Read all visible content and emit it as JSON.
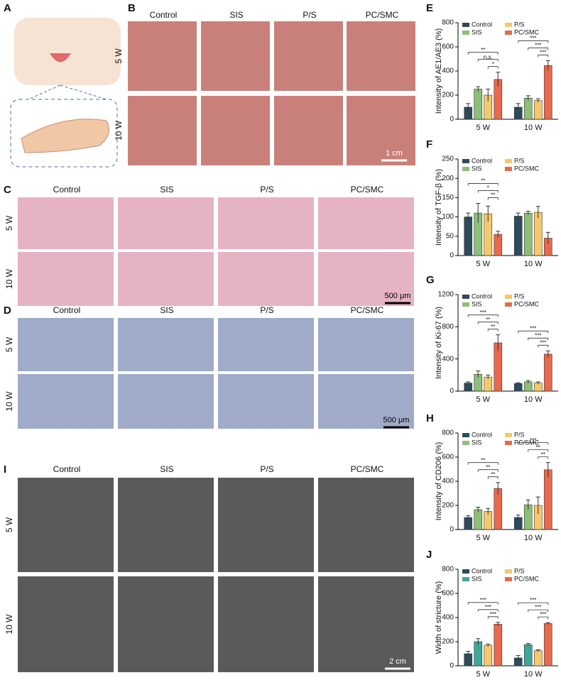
{
  "panel_labels": [
    "A",
    "B",
    "C",
    "D",
    "I"
  ],
  "groups": [
    "Control",
    "SIS",
    "P/S",
    "PC/SMC"
  ],
  "time_points": [
    "5 W",
    "10 W"
  ],
  "scale_bars": {
    "B": "1 cm",
    "C": "500 μm",
    "D": "500 μm",
    "I": "2 cm"
  },
  "chart_data": [
    {
      "type": "bar",
      "panel_label": "E",
      "y_label": "Intensity of AE1/AE3 (%)",
      "categories": [
        "5 W",
        "10 W"
      ],
      "ylim": [
        0,
        800
      ],
      "yticks": [
        0,
        200,
        400,
        600,
        800
      ],
      "series": [
        {
          "name": "Control",
          "color": "#2d4b5c",
          "values": [
            100,
            100
          ],
          "errors": [
            30,
            30
          ]
        },
        {
          "name": "SIS",
          "color": "#8dbf78",
          "values": [
            250,
            175
          ],
          "errors": [
            20,
            20
          ]
        },
        {
          "name": "P/S",
          "color": "#f3c969",
          "values": [
            200,
            155
          ],
          "errors": [
            50,
            15
          ]
        },
        {
          "name": "PC/SMC",
          "color": "#e66a4c",
          "values": [
            330,
            445
          ],
          "errors": [
            60,
            40
          ]
        }
      ],
      "annotations": [
        [
          "**",
          "n.s.",
          "*"
        ],
        [
          "***",
          "***",
          "***"
        ]
      ]
    },
    {
      "type": "bar",
      "panel_label": "F",
      "y_label": "Intensity of TGF-β (%)",
      "categories": [
        "5 W",
        "10 W"
      ],
      "ylim": [
        0,
        250
      ],
      "yticks": [
        0,
        50,
        100,
        150,
        200,
        250
      ],
      "series": [
        {
          "name": "Control",
          "color": "#2d4b5c",
          "values": [
            100,
            102
          ],
          "errors": [
            10,
            8
          ]
        },
        {
          "name": "SIS",
          "color": "#8dbf78",
          "values": [
            110,
            110
          ],
          "errors": [
            25,
            5
          ]
        },
        {
          "name": "P/S",
          "color": "#f3c969",
          "values": [
            108,
            112
          ],
          "errors": [
            20,
            15
          ]
        },
        {
          "name": "PC/SMC",
          "color": "#e66a4c",
          "values": [
            55,
            45
          ],
          "errors": [
            8,
            15
          ]
        }
      ],
      "annotations": [
        [
          "**",
          "*",
          "**"
        ],
        []
      ]
    },
    {
      "type": "bar",
      "panel_label": "G",
      "y_label": "Intensity of Ki-67 (%)",
      "categories": [
        "5 W",
        "10 W"
      ],
      "ylim": [
        0,
        1200
      ],
      "yticks": [
        0,
        400,
        800,
        1200
      ],
      "series": [
        {
          "name": "Control",
          "color": "#2d4b5c",
          "values": [
            100,
            95
          ],
          "errors": [
            15,
            10
          ]
        },
        {
          "name": "SIS",
          "color": "#8dbf78",
          "values": [
            210,
            115
          ],
          "errors": [
            40,
            15
          ]
        },
        {
          "name": "P/S",
          "color": "#f3c969",
          "values": [
            175,
            100
          ],
          "errors": [
            25,
            15
          ]
        },
        {
          "name": "PC/SMC",
          "color": "#e66a4c",
          "values": [
            600,
            460
          ],
          "errors": [
            100,
            40
          ]
        }
      ],
      "annotations": [
        [
          "***",
          "**",
          "**"
        ],
        [
          "***",
          "***",
          "***"
        ]
      ]
    },
    {
      "type": "bar",
      "panel_label": "H",
      "y_label": "Intensity of CD206 (%)",
      "categories": [
        "5 W",
        "10 W"
      ],
      "ylim": [
        0,
        800
      ],
      "yticks": [
        0,
        200,
        400,
        600,
        800
      ],
      "series": [
        {
          "name": "Control",
          "color": "#2d4b5c",
          "values": [
            100,
            100
          ],
          "errors": [
            15,
            20
          ]
        },
        {
          "name": "SIS",
          "color": "#8dbf78",
          "values": [
            165,
            205
          ],
          "errors": [
            20,
            40
          ]
        },
        {
          "name": "P/S",
          "color": "#f3c969",
          "values": [
            150,
            200
          ],
          "errors": [
            25,
            70
          ]
        },
        {
          "name": "PC/SMC",
          "color": "#e66a4c",
          "values": [
            340,
            495
          ],
          "errors": [
            50,
            60
          ]
        }
      ],
      "annotations": [
        [
          "**",
          "**",
          "**"
        ],
        [
          "***",
          "**",
          "**"
        ]
      ]
    },
    {
      "type": "bar",
      "panel_label": "J",
      "y_label": "Width of stricture (%)",
      "categories": [
        "5 W",
        "10 W"
      ],
      "ylim": [
        0,
        800
      ],
      "yticks": [
        0,
        200,
        400,
        600,
        800
      ],
      "series": [
        {
          "name": "Control",
          "color": "#2d4b5c",
          "values": [
            100,
            65
          ],
          "errors": [
            20,
            20
          ]
        },
        {
          "name": "SIS",
          "color": "#3fa69a",
          "values": [
            200,
            175
          ],
          "errors": [
            25,
            10
          ]
        },
        {
          "name": "P/S",
          "color": "#f3c969",
          "values": [
            170,
            125
          ],
          "errors": [
            10,
            8
          ]
        },
        {
          "name": "PC/SMC",
          "color": "#e66a4c",
          "values": [
            345,
            350
          ],
          "errors": [
            15,
            8
          ]
        }
      ],
      "annotations": [
        [
          "***",
          "***",
          "***"
        ],
        [
          "***",
          "***",
          "***"
        ]
      ]
    }
  ]
}
